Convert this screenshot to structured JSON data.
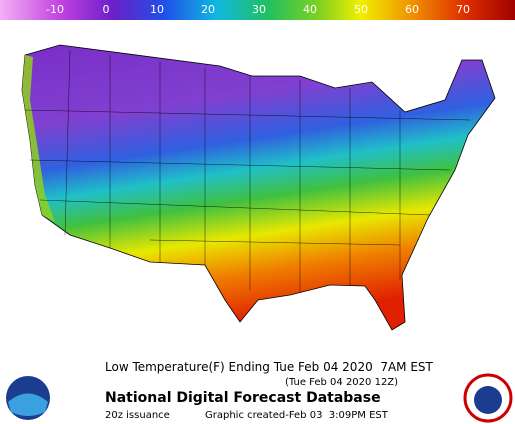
{
  "legend": {
    "ticks": [
      "-10",
      "0",
      "10",
      "20",
      "30",
      "40",
      "50",
      "60",
      "70"
    ]
  },
  "caption": {
    "title": "Low Temperature(F) Ending Tue Feb 04 2020  7AM EST",
    "subtitle": "(Tue Feb 04 2020 12Z)",
    "database": "National Digital Forecast Database",
    "issuance": "20z issuance",
    "created": "Graphic created-Feb 03  3:09PM EST"
  }
}
